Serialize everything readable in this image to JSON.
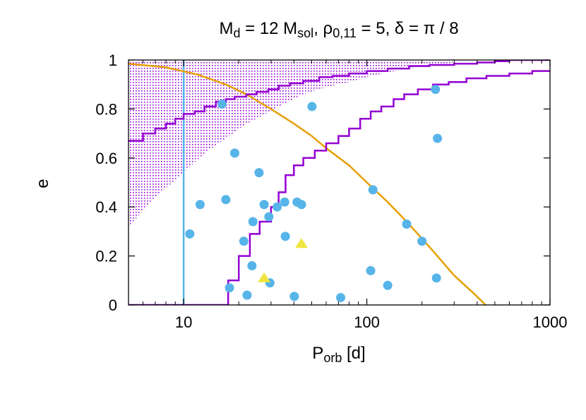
{
  "chart_data": {
    "type": "scatter",
    "title": {
      "parts": [
        {
          "t": "M"
        },
        {
          "t": "d",
          "sub": true
        },
        {
          "t": " = 12 M"
        },
        {
          "t": "sol",
          "sub": true
        },
        {
          "t": ",  ρ"
        },
        {
          "t": "0,11",
          "sub": true
        },
        {
          "t": " = 5,  δ = π / 8"
        }
      ]
    },
    "xlabel": {
      "parts": [
        {
          "t": "P"
        },
        {
          "t": "orb",
          "sub": true
        },
        {
          "t": " [d]"
        }
      ]
    },
    "ylabel": "e",
    "x_scale": "log",
    "xlim": [
      5,
      1000
    ],
    "ylim": [
      0,
      1
    ],
    "x_ticks": [
      10,
      100,
      1000
    ],
    "x_tick_labels": [
      "10",
      "100",
      "1000"
    ],
    "y_ticks": [
      0,
      0.2,
      0.4,
      0.6,
      0.8,
      1
    ],
    "y_tick_labels": [
      "0",
      "0.2",
      "0.4",
      "0.6",
      "0.8",
      "1"
    ],
    "colors": {
      "points": "#56b4e9",
      "triangles": "#f0e442",
      "purple": "#9400d3",
      "orange": "#e69f00",
      "vline": "#56b4e9"
    },
    "vertical_line_x": 10,
    "series": [
      {
        "kind": "circles",
        "x": [
          10.8,
          12.3,
          16.2,
          17.0,
          17.8,
          19.0,
          21.3,
          22.2,
          23.6,
          23.9,
          25.8,
          27.5,
          29.2,
          29.6,
          32.4,
          35.6,
          35.9,
          40.2,
          41.6,
          44.0,
          50.2,
          72.0,
          105.0,
          108.0,
          130.0,
          165.0,
          200.0,
          237.0,
          240.0,
          243.0
        ],
        "y": [
          0.29,
          0.41,
          0.82,
          0.43,
          0.07,
          0.62,
          0.26,
          0.04,
          0.16,
          0.34,
          0.54,
          0.41,
          0.36,
          0.09,
          0.4,
          0.42,
          0.28,
          0.035,
          0.42,
          0.41,
          0.81,
          0.03,
          0.14,
          0.47,
          0.08,
          0.33,
          0.26,
          0.88,
          0.11,
          0.68
        ]
      },
      {
        "kind": "triangles",
        "x": [
          27.5,
          44.0
        ],
        "y": [
          0.11,
          0.25
        ]
      },
      {
        "kind": "step-line-low",
        "x": [
          5,
          15.5,
          17.5,
          20,
          23,
          26,
          30,
          33,
          36,
          40,
          45,
          52,
          60,
          70,
          80,
          92,
          105,
          120,
          140,
          160,
          190,
          230,
          280,
          350,
          450,
          600,
          800,
          1000
        ],
        "y": [
          0,
          0,
          0.1,
          0.2,
          0.29,
          0.34,
          0.4,
          0.46,
          0.53,
          0.57,
          0.6,
          0.63,
          0.66,
          0.69,
          0.72,
          0.76,
          0.79,
          0.81,
          0.84,
          0.86,
          0.88,
          0.9,
          0.91,
          0.925,
          0.935,
          0.945,
          0.955,
          0.955
        ]
      },
      {
        "kind": "step-line-high",
        "x": [
          5,
          6,
          7,
          8,
          9,
          10,
          11.5,
          13,
          15,
          17,
          19,
          22,
          25,
          29,
          33,
          38,
          45,
          55,
          65,
          80,
          100,
          130,
          170,
          220,
          300,
          400,
          500,
          600,
          800,
          1000
        ],
        "y": [
          0.67,
          0.7,
          0.72,
          0.74,
          0.76,
          0.78,
          0.79,
          0.81,
          0.83,
          0.84,
          0.85,
          0.86,
          0.87,
          0.88,
          0.895,
          0.905,
          0.915,
          0.93,
          0.935,
          0.945,
          0.955,
          0.965,
          0.975,
          0.98,
          0.985,
          0.99,
          0.995,
          1.0,
          1.0,
          1.0
        ]
      },
      {
        "kind": "orange-curve",
        "x": [
          5,
          8,
          12,
          17,
          22,
          30,
          40,
          50,
          60,
          80,
          100,
          130,
          170,
          230,
          300,
          380,
          445
        ],
        "y": [
          0.985,
          0.97,
          0.94,
          0.9,
          0.86,
          0.8,
          0.74,
          0.69,
          0.64,
          0.57,
          0.5,
          0.42,
          0.33,
          0.22,
          0.12,
          0.05,
          0.0
        ]
      },
      {
        "kind": "shaded-region",
        "x_left": 5,
        "lower_x": [
          5,
          7,
          10,
          13,
          17,
          22,
          28,
          35,
          45,
          60,
          80,
          100,
          130,
          170,
          220,
          300,
          330
        ],
        "lower_y": [
          0.32,
          0.44,
          0.54,
          0.62,
          0.68,
          0.74,
          0.78,
          0.82,
          0.86,
          0.89,
          0.91,
          0.93,
          0.95,
          0.965,
          0.975,
          0.99,
          0.995
        ],
        "upper_y": 1.0
      }
    ]
  }
}
